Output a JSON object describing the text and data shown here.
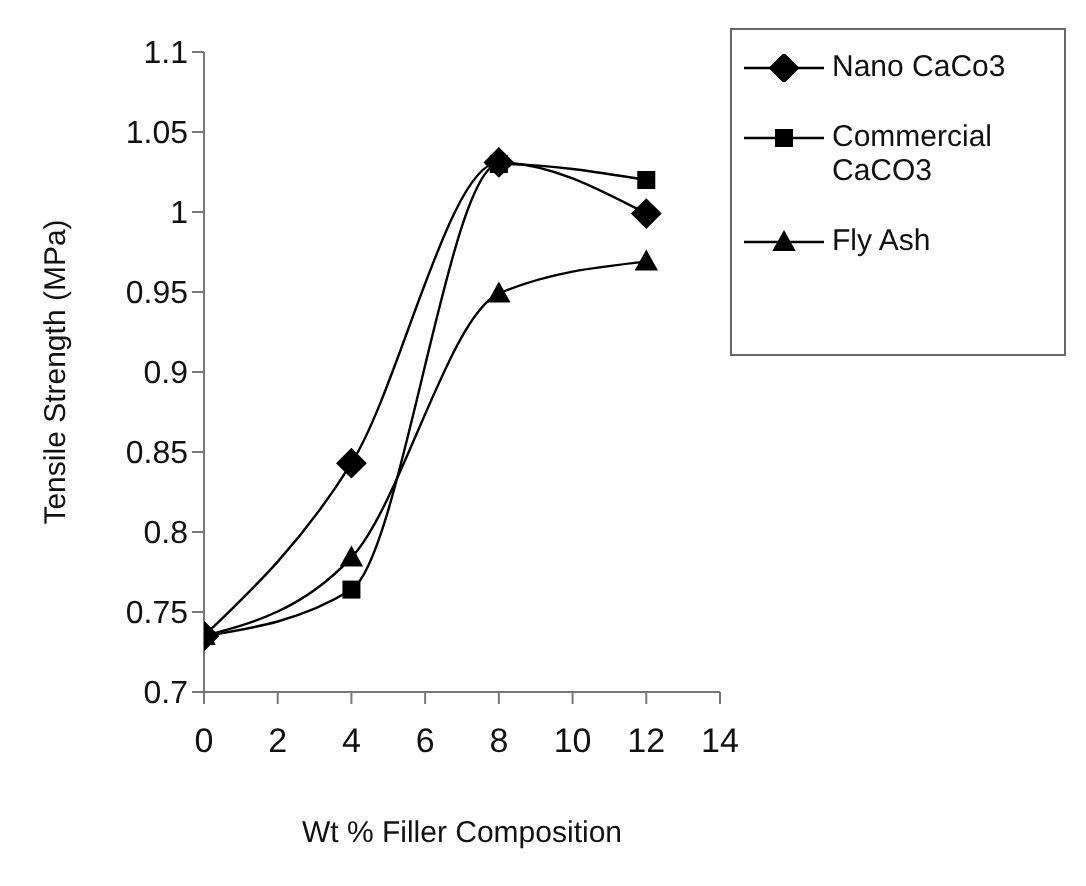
{
  "chart_data": {
    "type": "line",
    "xlabel": "Wt % Filler Composition",
    "ylabel": "Tensile Strength (MPa)",
    "x": [
      0,
      4,
      8,
      12
    ],
    "series": [
      {
        "name": "Nano CaCo3",
        "color": "#000000",
        "marker": "diamond",
        "values": [
          0.735,
          0.843,
          1.031,
          0.999
        ]
      },
      {
        "name": "Commercial CaCO3",
        "color": "#000000",
        "marker": "square",
        "values": [
          0.735,
          0.764,
          1.03,
          1.02
        ]
      },
      {
        "name": "Fly Ash",
        "color": "#000000",
        "marker": "triangle",
        "values": [
          0.735,
          0.784,
          0.949,
          0.969
        ]
      }
    ],
    "xlim": [
      0,
      14
    ],
    "xticks": [
      0,
      2,
      4,
      6,
      8,
      10,
      12,
      14
    ],
    "ylim": [
      0.7,
      1.1
    ],
    "yticks": [
      0.7,
      0.75,
      0.8,
      0.85,
      0.9,
      0.95,
      1,
      1.05,
      1.1
    ],
    "grid": false,
    "legend": "top right",
    "line_style": "solid"
  }
}
